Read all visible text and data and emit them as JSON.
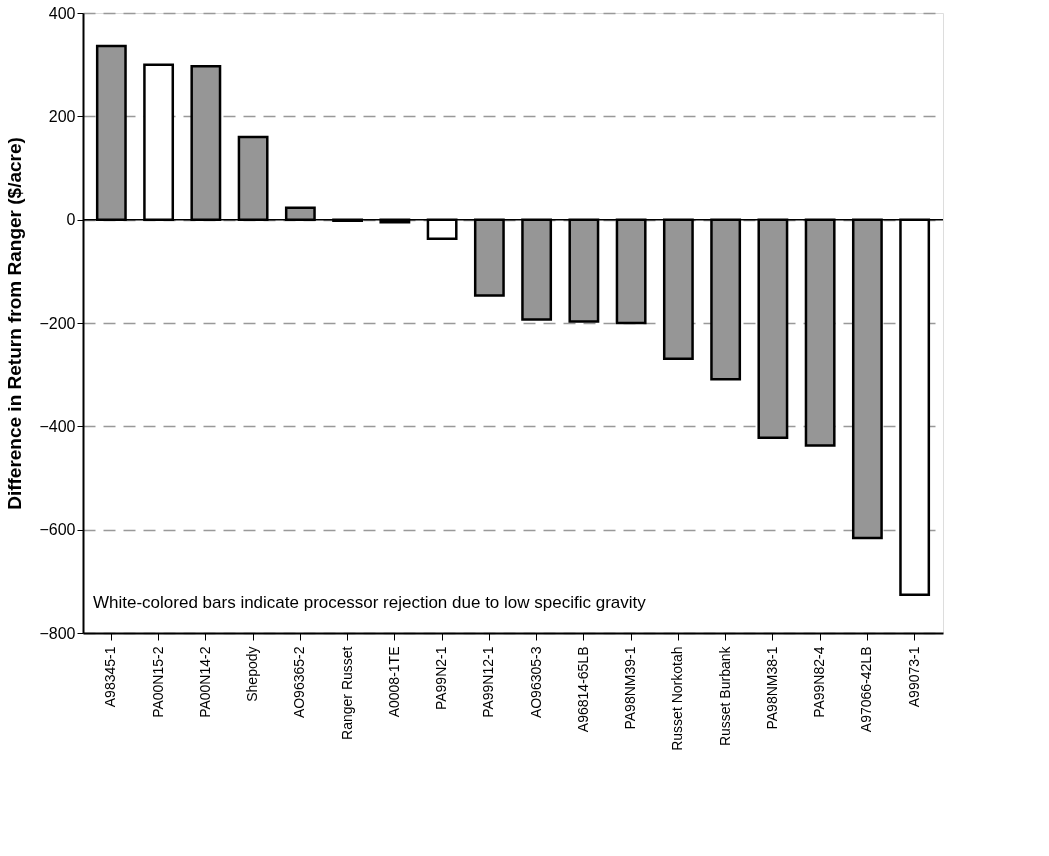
{
  "chart_data": {
    "type": "bar",
    "ylabel": "Difference in Return from Ranger ($/acre)",
    "categories": [
      "A98345-1",
      "PA00N15-2",
      "PA00N14-2",
      "Shepody",
      "AO96365-2",
      "Ranger Russet",
      "A0008-1TE",
      "PA99N2-1",
      "PA99N12-1",
      "AO96305-3",
      "A96814-65LB",
      "PA98NM39-1",
      "Russet Norkotah",
      "Russet Burbank",
      "PA98NM38-1",
      "PA99N82-4",
      "A97066-42LB",
      "A99073-1"
    ],
    "values": [
      336,
      300,
      297,
      160,
      23,
      -2,
      -5,
      -37,
      -147,
      -193,
      -197,
      -200,
      -269,
      -309,
      -422,
      -437,
      -616,
      -726
    ],
    "colors": [
      "#969696",
      "#ffffff",
      "#969696",
      "#969696",
      "#969696",
      "#969696",
      "#969696",
      "#ffffff",
      "#969696",
      "#969696",
      "#969696",
      "#969696",
      "#969696",
      "#969696",
      "#969696",
      "#969696",
      "#969696",
      "#ffffff"
    ],
    "ylim": [
      -800,
      400
    ],
    "yticks": [
      -800,
      -600,
      -400,
      -200,
      0,
      200,
      400
    ],
    "grid": "y",
    "ref_lines": [
      {
        "axis": "y",
        "value": 0
      }
    ],
    "annotations": [
      "White-colored bars indicate processor rejection due to low specific gravity"
    ]
  }
}
